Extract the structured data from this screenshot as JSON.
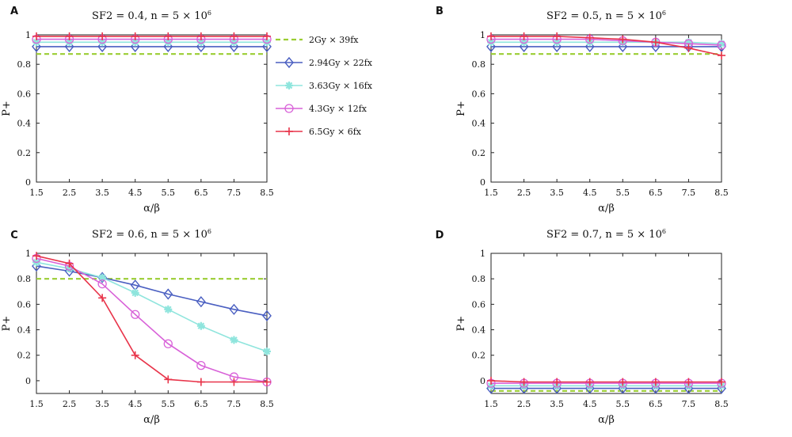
{
  "colors": {
    "2Gy": "#9acd32",
    "2.94Gy": "#4a5fc1",
    "3.63Gy": "#8fe5dd",
    "4.3Gy": "#d861d8",
    "6.5Gy": "#e8344a"
  },
  "legend": [
    {
      "label": "2Gy × 39fx",
      "key": "2Gy",
      "marker": "none",
      "dash": true
    },
    {
      "label": "2.94Gy × 22fx",
      "key": "2.94Gy",
      "marker": "diamond",
      "dash": false
    },
    {
      "label": "3.63Gy × 16fx",
      "key": "3.63Gy",
      "marker": "star",
      "dash": false
    },
    {
      "label": "4.3Gy × 12fx",
      "key": "4.3Gy",
      "marker": "circle",
      "dash": false
    },
    {
      "label": "6.5Gy × 6fx",
      "key": "6.5Gy",
      "marker": "plus",
      "dash": false
    }
  ],
  "chart_data": [
    {
      "type": "line",
      "panel": "A",
      "title": "SF2 = 0.4, n = 5 × 10",
      "title_sup": "6",
      "xlabel": "α/β",
      "ylabel": "P+",
      "xticks": [
        "1.5",
        "2.5",
        "3.5",
        "4.5",
        "5.5",
        "6.5",
        "7.5",
        "8.5"
      ],
      "yticks": [
        "0",
        "0.2",
        "0.4",
        "0.6",
        "0.8",
        "1"
      ],
      "x": [
        1.5,
        2.5,
        3.5,
        4.5,
        5.5,
        6.5,
        7.5,
        8.5
      ],
      "xlim": [
        1.5,
        8.5
      ],
      "ylim": [
        0,
        1
      ],
      "series": [
        {
          "name": "2Gy × 39fx",
          "key": "2Gy",
          "values": [
            0.87,
            0.87,
            0.87,
            0.87,
            0.87,
            0.87,
            0.87,
            0.87
          ]
        },
        {
          "name": "2.94Gy × 22fx",
          "key": "2.94Gy",
          "values": [
            0.92,
            0.92,
            0.92,
            0.92,
            0.92,
            0.92,
            0.92,
            0.92
          ]
        },
        {
          "name": "3.63Gy × 16fx",
          "key": "3.63Gy",
          "values": [
            0.95,
            0.95,
            0.95,
            0.95,
            0.95,
            0.95,
            0.95,
            0.95
          ]
        },
        {
          "name": "4.3Gy × 12fx",
          "key": "4.3Gy",
          "values": [
            0.97,
            0.97,
            0.97,
            0.97,
            0.97,
            0.97,
            0.97,
            0.97
          ]
        },
        {
          "name": "6.5Gy × 6fx",
          "key": "6.5Gy",
          "values": [
            0.99,
            0.99,
            0.99,
            0.99,
            0.99,
            0.99,
            0.99,
            0.99
          ]
        }
      ]
    },
    {
      "type": "line",
      "panel": "B",
      "title": "SF2 = 0.5, n = 5 × 10",
      "title_sup": "6",
      "xlabel": "α/β",
      "ylabel": "P+",
      "xticks": [
        "1.5",
        "2.5",
        "3.5",
        "4.5",
        "5.5",
        "6.5",
        "7.5",
        "8.5"
      ],
      "yticks": [
        "0",
        "0.2",
        "0.4",
        "0.6",
        "0.8",
        "1"
      ],
      "x": [
        1.5,
        2.5,
        3.5,
        4.5,
        5.5,
        6.5,
        7.5,
        8.5
      ],
      "xlim": [
        1.5,
        8.5
      ],
      "ylim": [
        0,
        1
      ],
      "series": [
        {
          "name": "2Gy × 39fx",
          "key": "2Gy",
          "values": [
            0.87,
            0.87,
            0.87,
            0.87,
            0.87,
            0.87,
            0.87,
            0.87
          ]
        },
        {
          "name": "2.94Gy × 22fx",
          "key": "2.94Gy",
          "values": [
            0.92,
            0.92,
            0.92,
            0.92,
            0.92,
            0.92,
            0.92,
            0.92
          ]
        },
        {
          "name": "3.63Gy × 16fx",
          "key": "3.63Gy",
          "values": [
            0.95,
            0.95,
            0.95,
            0.95,
            0.95,
            0.95,
            0.95,
            0.94
          ]
        },
        {
          "name": "4.3Gy × 12fx",
          "key": "4.3Gy",
          "values": [
            0.97,
            0.97,
            0.97,
            0.97,
            0.96,
            0.95,
            0.94,
            0.93
          ]
        },
        {
          "name": "6.5Gy × 6fx",
          "key": "6.5Gy",
          "values": [
            0.99,
            0.99,
            0.99,
            0.98,
            0.97,
            0.95,
            0.91,
            0.86
          ]
        }
      ]
    },
    {
      "type": "line",
      "panel": "C",
      "title": "SF2 = 0.6, n = 5 × 10",
      "title_sup": "6",
      "xlabel": "α/β",
      "ylabel": "P+",
      "xticks": [
        "1.5",
        "2.5",
        "3.5",
        "4.5",
        "5.5",
        "6.5",
        "7.5",
        "8.5"
      ],
      "yticks": [
        "0",
        "0.2",
        "0.4",
        "0.6",
        "0.8",
        "1"
      ],
      "x": [
        1.5,
        2.5,
        3.5,
        4.5,
        5.5,
        6.5,
        7.5,
        8.5
      ],
      "xlim": [
        1.5,
        8.5
      ],
      "ylim": [
        -0.1,
        1
      ],
      "series": [
        {
          "name": "2Gy × 39fx",
          "key": "2Gy",
          "values": [
            0.8,
            0.8,
            0.8,
            0.8,
            0.8,
            0.8,
            0.8,
            0.8
          ]
        },
        {
          "name": "2.94Gy × 22fx",
          "key": "2.94Gy",
          "values": [
            0.9,
            0.86,
            0.81,
            0.75,
            0.68,
            0.62,
            0.56,
            0.51
          ]
        },
        {
          "name": "3.63Gy × 16fx",
          "key": "3.63Gy",
          "values": [
            0.93,
            0.88,
            0.81,
            0.69,
            0.56,
            0.43,
            0.32,
            0.23
          ]
        },
        {
          "name": "4.3Gy × 12fx",
          "key": "4.3Gy",
          "values": [
            0.96,
            0.9,
            0.76,
            0.52,
            0.29,
            0.12,
            0.03,
            -0.01
          ]
        },
        {
          "name": "6.5Gy × 6fx",
          "key": "6.5Gy",
          "values": [
            0.98,
            0.92,
            0.65,
            0.2,
            0.01,
            -0.01,
            -0.01,
            -0.01
          ]
        }
      ]
    },
    {
      "type": "line",
      "panel": "D",
      "title": "SF2 = 0.7, n = 5 × 10",
      "title_sup": "6",
      "xlabel": "α/β",
      "ylabel": "P+",
      "xticks": [
        "1.5",
        "2.5",
        "3.5",
        "4.5",
        "5.5",
        "6.5",
        "7.5",
        "8.5"
      ],
      "yticks": [
        "0",
        "0.2",
        "0.4",
        "0.6",
        "0.8",
        "1"
      ],
      "x": [
        1.5,
        2.5,
        3.5,
        4.5,
        5.5,
        6.5,
        7.5,
        8.5
      ],
      "xlim": [
        1.5,
        8.5
      ],
      "ylim": [
        -0.1,
        1
      ],
      "series": [
        {
          "name": "2Gy × 39fx",
          "key": "2Gy",
          "values": [
            -0.08,
            -0.08,
            -0.08,
            -0.08,
            -0.08,
            -0.08,
            -0.08,
            -0.08
          ]
        },
        {
          "name": "2.94Gy × 22fx",
          "key": "2.94Gy",
          "values": [
            -0.06,
            -0.06,
            -0.06,
            -0.06,
            -0.06,
            -0.06,
            -0.06,
            -0.06
          ]
        },
        {
          "name": "3.63Gy × 16fx",
          "key": "3.63Gy",
          "values": [
            -0.04,
            -0.04,
            -0.04,
            -0.04,
            -0.04,
            -0.04,
            -0.04,
            -0.04
          ]
        },
        {
          "name": "4.3Gy × 12fx",
          "key": "4.3Gy",
          "values": [
            -0.02,
            -0.02,
            -0.02,
            -0.02,
            -0.02,
            -0.02,
            -0.02,
            -0.02
          ]
        },
        {
          "name": "6.5Gy × 6fx",
          "key": "6.5Gy",
          "values": [
            0.0,
            -0.01,
            -0.01,
            -0.01,
            -0.01,
            -0.01,
            -0.01,
            -0.01
          ]
        }
      ]
    }
  ]
}
